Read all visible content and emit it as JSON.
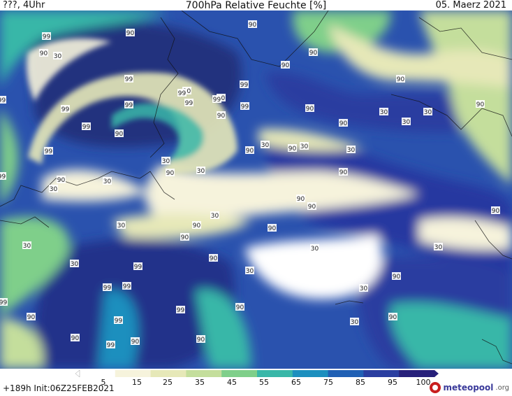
{
  "header": {
    "left": "???, 4Uhr",
    "center": "700hPa Relative Feuchte [%]",
    "right": "05. Maerz 2021"
  },
  "colorbar": {
    "ticks": [
      "5",
      "15",
      "25",
      "35",
      "45",
      "55",
      "65",
      "75",
      "85",
      "95",
      "100"
    ],
    "colors": [
      "#ffffff",
      "#f6f3dc",
      "#e6e8b8",
      "#c4de9c",
      "#7fcf8a",
      "#39b7a8",
      "#1c8fbe",
      "#2060b4",
      "#2a3ea0",
      "#27207a"
    ]
  },
  "footer": {
    "init": "+189h Init:06Z25FEB2021",
    "logo_text": "meteopool",
    "logo_suffix": ".org"
  },
  "map": {
    "contour_labels_90": [
      "90",
      "90",
      "90",
      "90",
      "90",
      "90",
      "90",
      "90",
      "90",
      "90",
      "90",
      "90",
      "90",
      "90",
      "90",
      "90",
      "90",
      "90",
      "90",
      "90",
      "90",
      "90",
      "90",
      "90",
      "90",
      "90",
      "90",
      "90",
      "90",
      "90",
      "90",
      "90"
    ],
    "contour_labels_99": [
      "99",
      "99",
      "99",
      "99",
      "99",
      "99",
      "99",
      "99",
      "99",
      "99",
      "99",
      "99",
      "99",
      "99",
      "99",
      "99",
      "99",
      "99",
      "99",
      "99"
    ],
    "contour_labels_30": [
      "30",
      "30",
      "30",
      "30",
      "30",
      "30",
      "30",
      "30",
      "30",
      "30",
      "30",
      "30",
      "30",
      "30",
      "30",
      "30",
      "30",
      "30",
      "30",
      "30"
    ]
  }
}
